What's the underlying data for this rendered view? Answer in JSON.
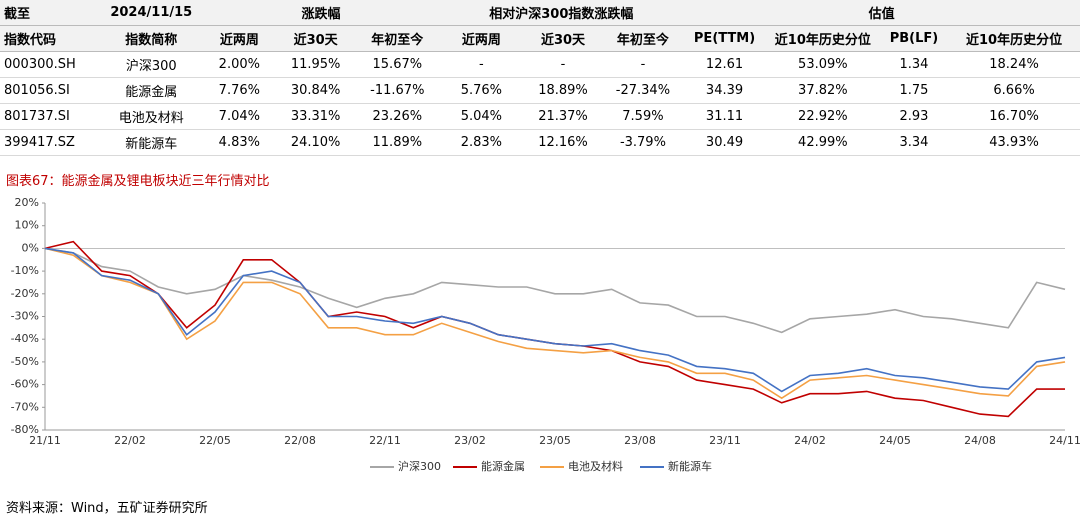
{
  "table": {
    "header_top": [
      "截至",
      "2024/11/15",
      "涨跌幅",
      "相对沪深300指数涨跌幅",
      "估值"
    ],
    "header": [
      "指数代码",
      "指数简称",
      "近两周",
      "近30天",
      "年初至今",
      "近两周",
      "近30天",
      "年初至今",
      "PE(TTM)",
      "近10年历史分位",
      "PB(LF)",
      "近10年历史分位"
    ],
    "rows": [
      [
        "000300.SH",
        "沪深300",
        "2.00%",
        "11.95%",
        "15.67%",
        "-",
        "-",
        "-",
        "12.61",
        "53.09%",
        "1.34",
        "18.24%"
      ],
      [
        "801056.SI",
        "能源金属",
        "7.76%",
        "30.84%",
        "-11.67%",
        "5.76%",
        "18.89%",
        "-27.34%",
        "34.39",
        "37.82%",
        "1.75",
        "6.66%"
      ],
      [
        "801737.SI",
        "电池及材料",
        "7.04%",
        "33.31%",
        "23.26%",
        "5.04%",
        "21.37%",
        "7.59%",
        "31.11",
        "22.92%",
        "2.93",
        "16.70%"
      ],
      [
        "399417.SZ",
        "新能源车",
        "4.83%",
        "24.10%",
        "11.89%",
        "2.83%",
        "12.16%",
        "-3.79%",
        "30.49",
        "42.99%",
        "3.34",
        "43.93%"
      ]
    ]
  },
  "caption": "图表67：能源金属及锂电板块近三年行情对比",
  "chart_data": {
    "type": "line",
    "x": [
      "21/11",
      null,
      null,
      "22/02",
      null,
      null,
      "22/05",
      null,
      null,
      "22/08",
      null,
      null,
      "22/11",
      null,
      null,
      "23/02",
      null,
      null,
      "23/05",
      null,
      null,
      "23/08",
      null,
      null,
      "23/11",
      null,
      null,
      "24/02",
      null,
      null,
      "24/05",
      null,
      null,
      "24/08",
      null,
      null,
      "24/11"
    ],
    "ylim": [
      -80,
      20
    ],
    "yticks": [
      {
        "value": -80,
        "label": "-80%"
      },
      {
        "value": -70,
        "label": "-70%"
      },
      {
        "value": -60,
        "label": "-60%"
      },
      {
        "value": -50,
        "label": "-50%"
      },
      {
        "value": -40,
        "label": "-40%"
      },
      {
        "value": -30,
        "label": "-30%"
      },
      {
        "value": -20,
        "label": "-20%"
      },
      {
        "value": -10,
        "label": "-10%"
      },
      {
        "value": 0,
        "label": "0%"
      },
      {
        "value": 10,
        "label": "10%"
      },
      {
        "value": 20,
        "label": "20%"
      }
    ],
    "series": [
      {
        "name": "沪深300",
        "color": "#a6a6a6",
        "values": [
          0,
          -2,
          -8,
          -10,
          -17,
          -20,
          -18,
          -12,
          -14,
          -17,
          -22,
          -26,
          -22,
          -20,
          -15,
          -16,
          -17,
          -17,
          -20,
          -20,
          -18,
          -24,
          -25,
          -30,
          -30,
          -33,
          -37,
          -31,
          -30,
          -29,
          -27,
          -30,
          -31,
          -33,
          -35,
          -15,
          -18
        ]
      },
      {
        "name": "能源金属",
        "color": "#c00000",
        "values": [
          0,
          3,
          -10,
          -12,
          -20,
          -35,
          -25,
          -5,
          -5,
          -15,
          -30,
          -28,
          -30,
          -35,
          -30,
          -33,
          -38,
          -40,
          -42,
          -43,
          -45,
          -50,
          -52,
          -58,
          -60,
          -62,
          -68,
          -64,
          -64,
          -63,
          -66,
          -67,
          -70,
          -73,
          -74,
          -62,
          -62
        ]
      },
      {
        "name": "电池及材料",
        "color": "#f4a044",
        "values": [
          0,
          -3,
          -12,
          -15,
          -20,
          -40,
          -32,
          -15,
          -15,
          -20,
          -35,
          -35,
          -38,
          -38,
          -33,
          -37,
          -41,
          -44,
          -45,
          -46,
          -45,
          -48,
          -50,
          -55,
          -55,
          -58,
          -66,
          -58,
          -57,
          -56,
          -58,
          -60,
          -62,
          -64,
          -65,
          -52,
          -50
        ]
      },
      {
        "name": "新能源车",
        "color": "#4472c4",
        "values": [
          0,
          -2,
          -12,
          -14,
          -20,
          -38,
          -28,
          -12,
          -10,
          -15,
          -30,
          -30,
          -32,
          -33,
          -30,
          -33,
          -38,
          -40,
          -42,
          -43,
          -42,
          -45,
          -47,
          -52,
          -53,
          -55,
          -63,
          -56,
          -55,
          -53,
          -56,
          -57,
          -59,
          -61,
          -62,
          -50,
          -48
        ]
      }
    ]
  },
  "source": "资料来源：Wind，五矿证券研究所"
}
